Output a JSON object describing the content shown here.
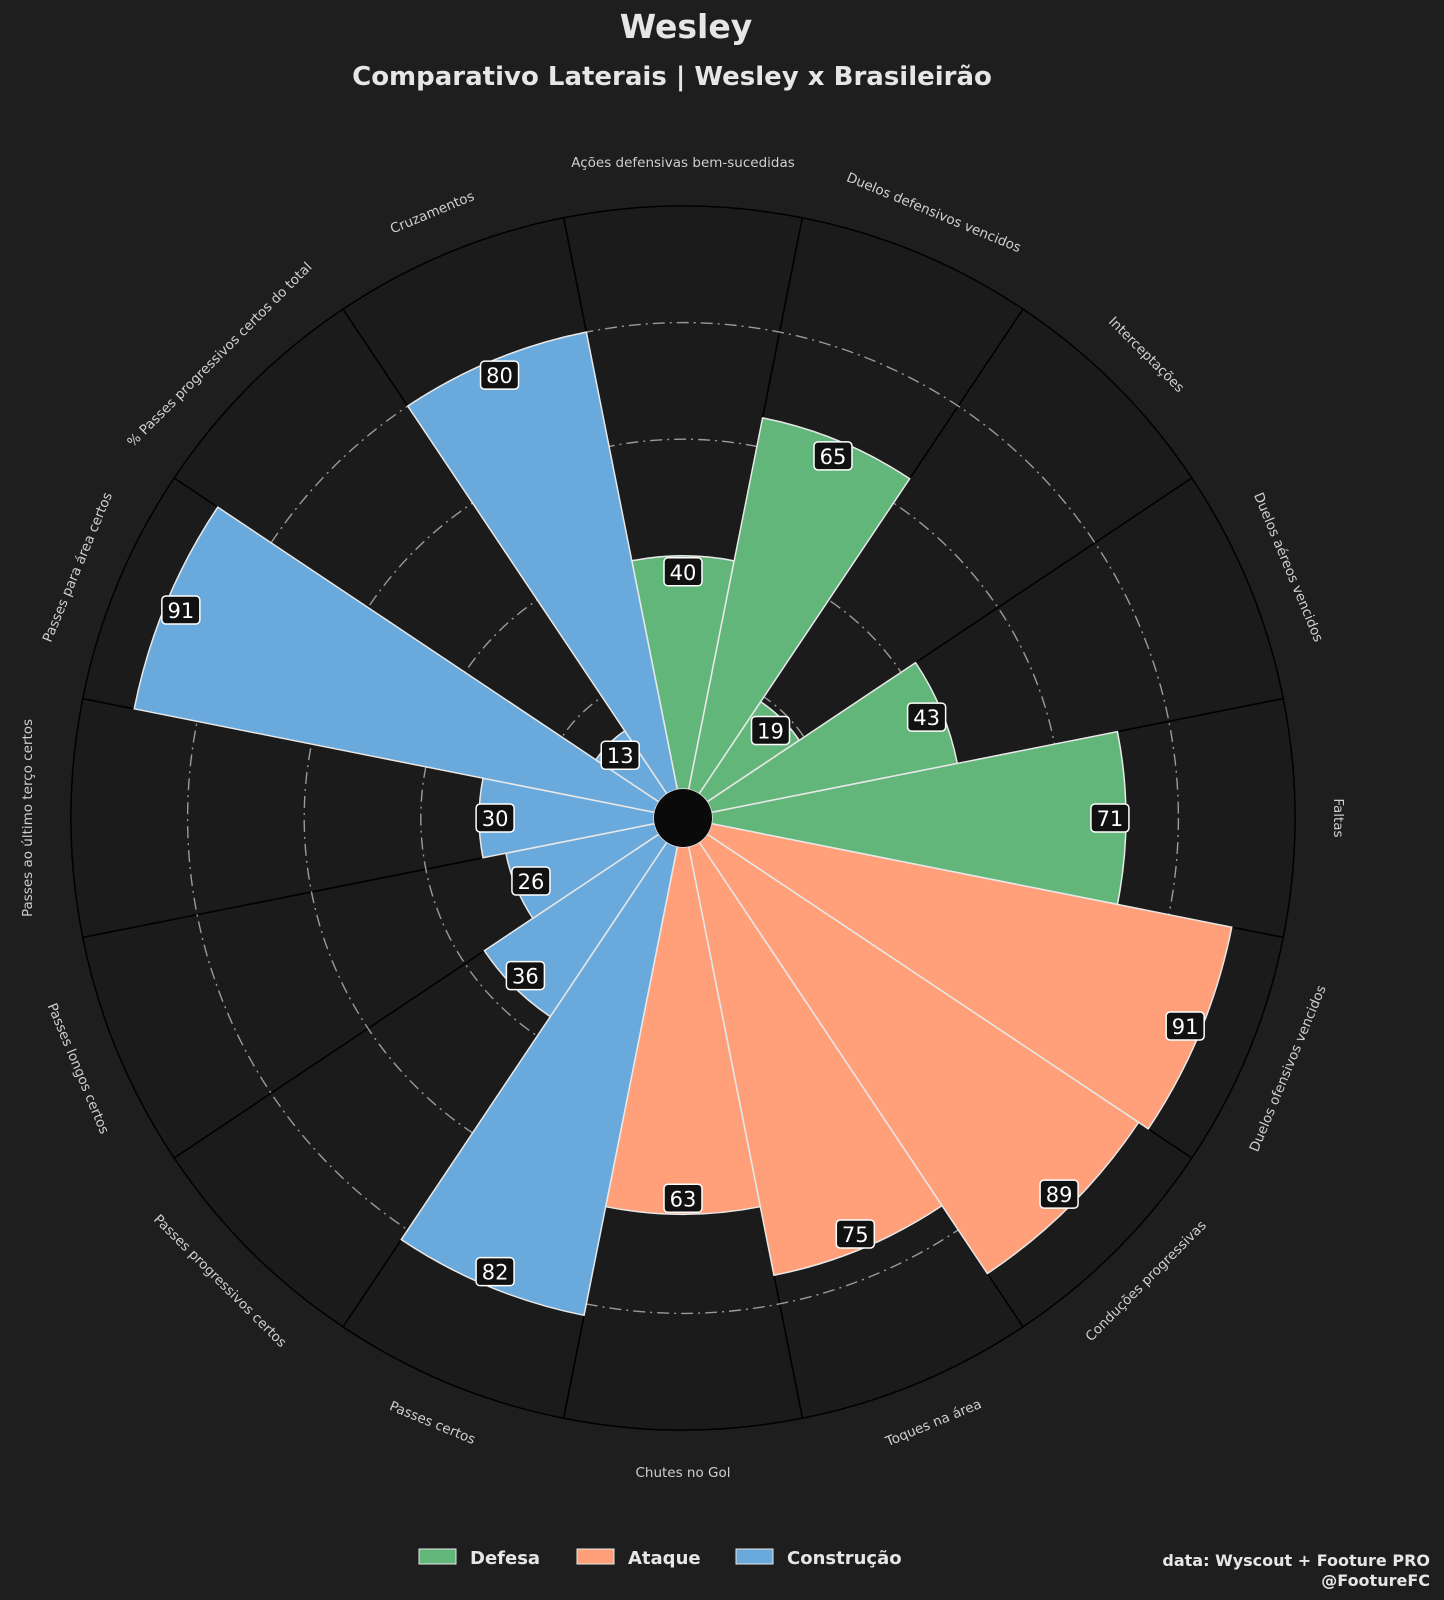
{
  "chart_data": {
    "type": "pizza",
    "title": "Wesley",
    "subtitle": "Comparativo Laterais | Wesley x Brasileirão",
    "rlim": [
      0,
      100
    ],
    "grid_rings": [
      20,
      40,
      60,
      80
    ],
    "categories": [
      "Ações defensivas bem-sucedidas",
      "Duelos defensivos vencidos",
      "Interceptações",
      "Duelos aéreos vencidos",
      "Faltas",
      "Duelos ofensivos vencidos",
      "Conduções progressivas",
      "Toques na área",
      "Chutes no Gol",
      "Passes certos",
      "Passes progressivos certos",
      "Passes longos certos",
      "Passes ao último terço certos",
      "Passes para área certos",
      "% Passes progressivos certos do total",
      "Cruzamentos"
    ],
    "values": [
      40,
      65,
      19,
      43,
      71,
      91,
      89,
      75,
      63,
      82,
      36,
      26,
      30,
      91,
      13,
      80
    ],
    "groups": [
      "Defesa",
      "Defesa",
      "Defesa",
      "Defesa",
      "Defesa",
      "Ataque",
      "Ataque",
      "Ataque",
      "Ataque",
      "Construção",
      "Construção",
      "Construção",
      "Construção",
      "Construção",
      "Construção",
      "Construção"
    ],
    "legend": [
      {
        "name": "Defesa",
        "color": "#63b67a"
      },
      {
        "name": "Ataque",
        "color": "#ffa07a"
      },
      {
        "name": "Construção",
        "color": "#6aa9db"
      }
    ],
    "legend_position": "bottom-center"
  },
  "colors": {
    "background": "#1e1e1e",
    "slice_background": "#1b1b1b",
    "edge": "#e8e8e8",
    "grid": "#9a9a9a"
  },
  "credit": {
    "line1": "data: Wyscout + Footure PRO",
    "line2": "@FootureFC"
  }
}
